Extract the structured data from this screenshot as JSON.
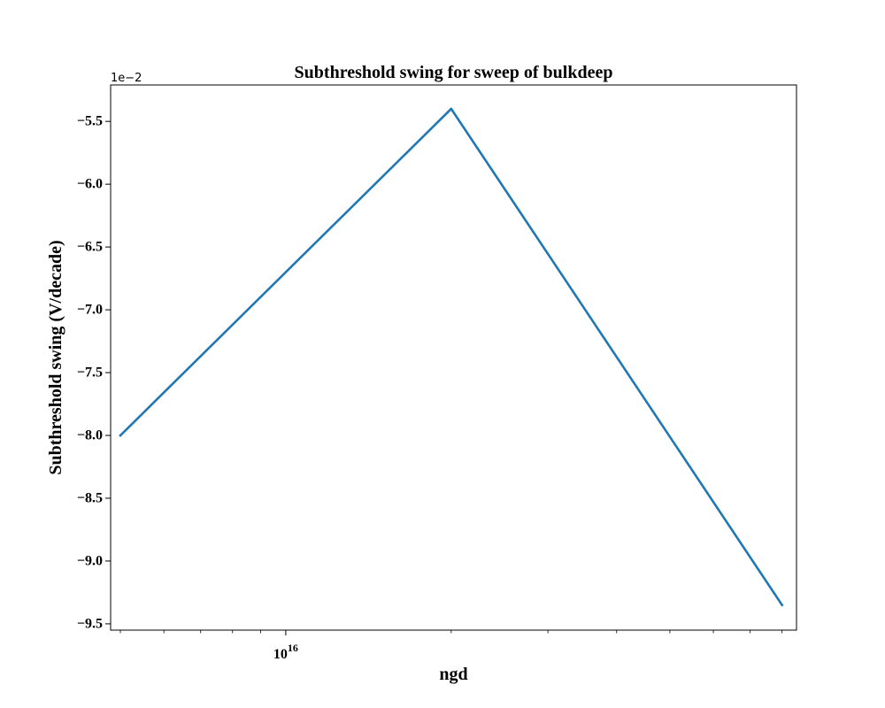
{
  "chart_data": {
    "type": "line",
    "title": "Subthreshold swing for sweep of bulkdeep",
    "xlabel": "ngd",
    "ylabel": "Subthreshold swing (V/decade)",
    "xscale": "log",
    "xlim": [
      4800000000000000.0,
      8.5e+16
    ],
    "ylim": [
      -0.0955,
      -0.0521
    ],
    "y_offset_text": "1e−2",
    "x_major_ticks": [
      {
        "value": 1e+16,
        "mantissa": "10",
        "exponent": "16"
      }
    ],
    "y_ticks": [
      {
        "value": -0.055,
        "label": "−5.5"
      },
      {
        "value": -0.06,
        "label": "−6.0"
      },
      {
        "value": -0.065,
        "label": "−6.5"
      },
      {
        "value": -0.07,
        "label": "−7.0"
      },
      {
        "value": -0.075,
        "label": "−7.5"
      },
      {
        "value": -0.08,
        "label": "−8.0"
      },
      {
        "value": -0.085,
        "label": "−8.5"
      },
      {
        "value": -0.09,
        "label": "−9.0"
      },
      {
        "value": -0.095,
        "label": "−9.5"
      }
    ],
    "series": [
      {
        "color": "#1f77b4",
        "x": [
          5000000000000000.0,
          2e+16,
          8e+16
        ],
        "y": [
          -0.08,
          -0.054,
          -0.0935
        ]
      }
    ],
    "grid": false,
    "legend": "none"
  }
}
